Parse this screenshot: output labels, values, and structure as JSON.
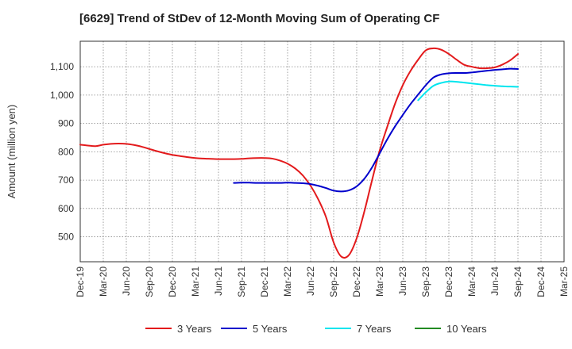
{
  "chart_data": {
    "type": "line",
    "title": "[6629]  Trend of StDev of 12-Month Moving Sum of Operating CF",
    "xlabel": "",
    "ylabel": "Amount (million yen)",
    "x_ticks": [
      "Dec-19",
      "Mar-20",
      "Jun-20",
      "Sep-20",
      "Dec-20",
      "Mar-21",
      "Jun-21",
      "Sep-21",
      "Dec-21",
      "Mar-22",
      "Jun-22",
      "Sep-22",
      "Dec-22",
      "Mar-23",
      "Jun-23",
      "Sep-23",
      "Dec-23",
      "Mar-24",
      "Jun-24",
      "Sep-24",
      "Dec-24",
      "Mar-25"
    ],
    "y_ticks": [
      500,
      600,
      700,
      800,
      900,
      1000,
      1100
    ],
    "y_tick_labels": [
      "500",
      "600",
      "700",
      "800",
      "900",
      "1,000",
      "1,100"
    ],
    "ylim": [
      412,
      1190
    ],
    "grid": true,
    "legend_position": "bottom",
    "series": [
      {
        "name": "3 Years",
        "color": "#e31a1c",
        "x": [
          "2019-12",
          "2020-01",
          "2020-02",
          "2020-03",
          "2020-04",
          "2020-05",
          "2020-06",
          "2020-07",
          "2020-08",
          "2020-09",
          "2020-10",
          "2020-11",
          "2020-12",
          "2021-01",
          "2021-02",
          "2021-03",
          "2021-04",
          "2021-05",
          "2021-06",
          "2021-07",
          "2021-08",
          "2021-09",
          "2021-10",
          "2021-11",
          "2021-12",
          "2022-01",
          "2022-02",
          "2022-03",
          "2022-04",
          "2022-05",
          "2022-06",
          "2022-07",
          "2022-08",
          "2022-09",
          "2022-10",
          "2022-11",
          "2022-12",
          "2023-01",
          "2023-02",
          "2023-03",
          "2023-04",
          "2023-05",
          "2023-06",
          "2023-07",
          "2023-08",
          "2023-09",
          "2023-10",
          "2023-11",
          "2023-12",
          "2024-01",
          "2024-02",
          "2024-03",
          "2024-04",
          "2024-05",
          "2024-06",
          "2024-07",
          "2024-08",
          "2024-09"
        ],
        "y": [
          825,
          822,
          820,
          825,
          828,
          829,
          828,
          824,
          818,
          810,
          802,
          795,
          789,
          785,
          781,
          778,
          776,
          775,
          774,
          774,
          774,
          775,
          777,
          778,
          778,
          776,
          769,
          758,
          741,
          716,
          680,
          632,
          570,
          480,
          430,
          436,
          495,
          590,
          700,
          805,
          890,
          970,
          1035,
          1085,
          1125,
          1158,
          1165,
          1160,
          1145,
          1125,
          1107,
          1100,
          1095,
          1095,
          1098,
          1108,
          1123,
          1145
        ]
      },
      {
        "name": "5 Years",
        "color": "#0000cc",
        "x": [
          "2021-08",
          "2021-09",
          "2021-10",
          "2021-11",
          "2021-12",
          "2022-01",
          "2022-02",
          "2022-03",
          "2022-04",
          "2022-05",
          "2022-06",
          "2022-07",
          "2022-08",
          "2022-09",
          "2022-10",
          "2022-11",
          "2022-12",
          "2023-01",
          "2023-02",
          "2023-03",
          "2023-04",
          "2023-05",
          "2023-06",
          "2023-07",
          "2023-08",
          "2023-09",
          "2023-10",
          "2023-11",
          "2023-12",
          "2024-01",
          "2024-02",
          "2024-03",
          "2024-04",
          "2024-05",
          "2024-06",
          "2024-07",
          "2024-08",
          "2024-09"
        ],
        "y": [
          690,
          691,
          691,
          690,
          690,
          690,
          690,
          691,
          690,
          689,
          686,
          680,
          672,
          663,
          660,
          664,
          678,
          705,
          745,
          795,
          845,
          890,
          930,
          968,
          1002,
          1035,
          1062,
          1073,
          1077,
          1078,
          1078,
          1080,
          1083,
          1086,
          1089,
          1091,
          1093,
          1092
        ]
      },
      {
        "name": "7 Years",
        "color": "#00e5ee",
        "x": [
          "2023-08",
          "2023-09",
          "2023-10",
          "2023-11",
          "2023-12",
          "2024-01",
          "2024-02",
          "2024-03",
          "2024-04",
          "2024-05",
          "2024-06",
          "2024-07",
          "2024-08",
          "2024-09"
        ],
        "y": [
          982,
          1010,
          1033,
          1043,
          1048,
          1047,
          1044,
          1041,
          1038,
          1035,
          1033,
          1031,
          1030,
          1029
        ]
      },
      {
        "name": "10 Years",
        "color": "#228b22",
        "x": [],
        "y": []
      }
    ]
  }
}
